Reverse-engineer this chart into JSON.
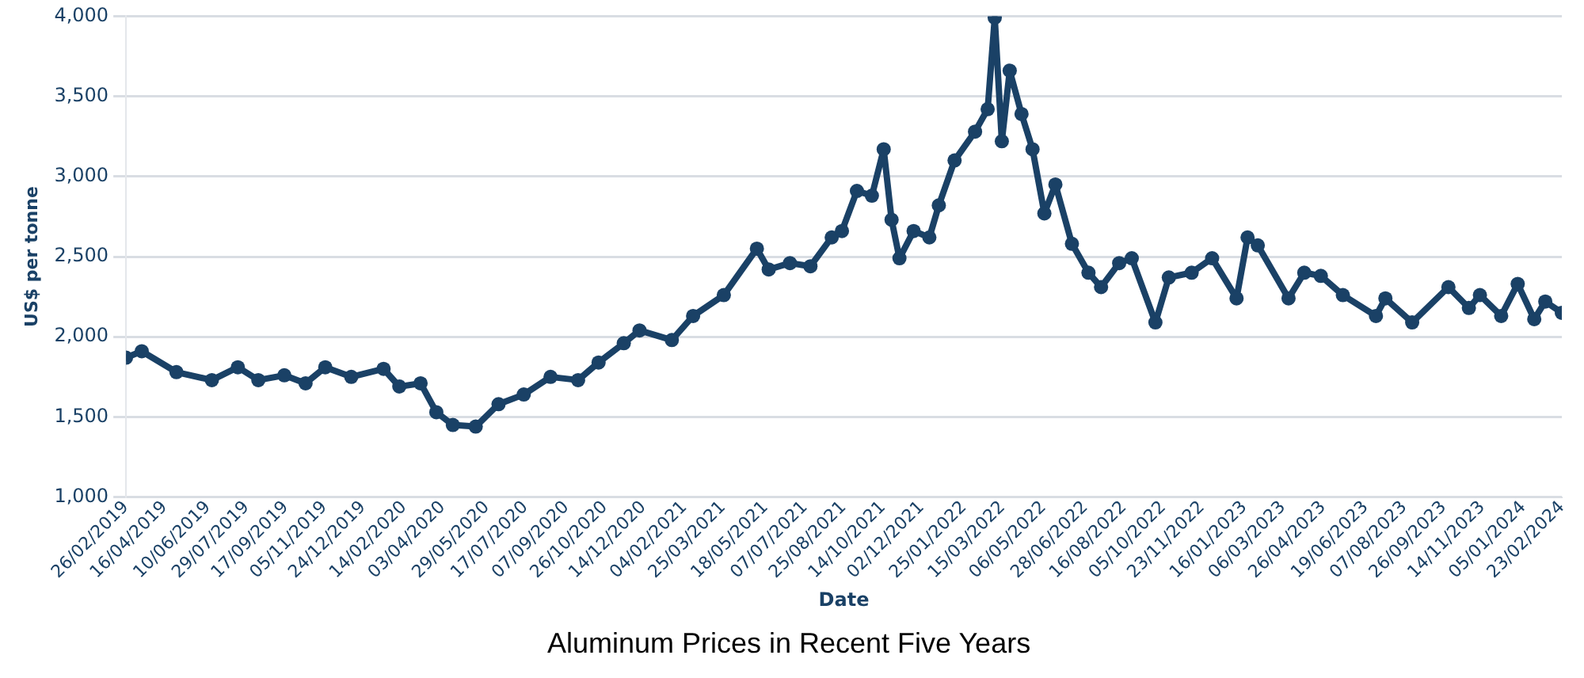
{
  "chart_data": {
    "type": "line",
    "title": "Aluminum Prices in Recent Five Years",
    "xlabel": "Date",
    "ylabel": "US$ per tonne",
    "x": [
      "2019-02-26",
      "2019-03-18",
      "2019-05-01",
      "2019-06-15",
      "2019-07-18",
      "2019-08-13",
      "2019-09-15",
      "2019-10-12",
      "2019-11-06",
      "2019-12-09",
      "2020-01-19",
      "2020-02-08",
      "2020-03-06",
      "2020-03-26",
      "2020-04-16",
      "2020-05-15",
      "2020-06-13",
      "2020-07-15",
      "2020-08-18",
      "2020-09-22",
      "2020-10-18",
      "2020-11-19",
      "2020-12-09",
      "2021-01-19",
      "2021-02-15",
      "2021-03-26",
      "2021-05-07",
      "2021-05-22",
      "2021-06-18",
      "2021-07-14",
      "2021-08-10",
      "2021-08-23",
      "2021-09-11",
      "2021-09-30",
      "2021-10-15",
      "2021-10-25",
      "2021-11-04",
      "2021-11-22",
      "2021-12-12",
      "2021-12-24",
      "2022-01-13",
      "2022-02-08",
      "2022-02-24",
      "2022-03-05",
      "2022-03-14",
      "2022-03-24",
      "2022-04-08",
      "2022-04-22",
      "2022-05-07",
      "2022-05-21",
      "2022-06-11",
      "2022-07-02",
      "2022-07-18",
      "2022-08-10",
      "2022-08-26",
      "2022-09-25",
      "2022-10-12",
      "2022-11-10",
      "2022-12-06",
      "2023-01-06",
      "2023-01-20",
      "2023-02-02",
      "2023-03-13",
      "2023-04-02",
      "2023-04-23",
      "2023-05-21",
      "2023-07-02",
      "2023-07-14",
      "2023-08-17",
      "2023-10-02",
      "2023-10-28",
      "2023-11-11",
      "2023-12-08",
      "2023-12-29",
      "2024-01-19",
      "2024-02-02",
      "2024-02-23"
    ],
    "series": [
      {
        "color": "#1a4166",
        "values": [
          1870,
          1910,
          1780,
          1730,
          1810,
          1730,
          1760,
          1710,
          1810,
          1750,
          1800,
          1690,
          1710,
          1530,
          1450,
          1440,
          1580,
          1640,
          1750,
          1730,
          1840,
          1960,
          2040,
          1980,
          2130,
          2260,
          2550,
          2420,
          2460,
          2440,
          2620,
          2660,
          2910,
          2880,
          3170,
          2730,
          2490,
          2660,
          2620,
          2820,
          3100,
          3280,
          3420,
          3990,
          3220,
          3660,
          3390,
          3170,
          2770,
          2950,
          2580,
          2400,
          2310,
          2460,
          2490,
          2090,
          2370,
          2400,
          2490,
          2240,
          2620,
          2570,
          2240,
          2400,
          2380,
          2260,
          2130,
          2240,
          2090,
          2310,
          2180,
          2260,
          2130,
          2330,
          2110,
          2220,
          2150
        ]
      }
    ],
    "xlim": [
      "2019-02-26",
      "2024-02-23"
    ],
    "xticks": [
      {
        "value": "2019-02-26",
        "label": "26/02/2019"
      },
      {
        "value": "2019-04-16",
        "label": "16/04/2019"
      },
      {
        "value": "2019-06-10",
        "label": "10/06/2019"
      },
      {
        "value": "2019-07-29",
        "label": "29/07/2019"
      },
      {
        "value": "2019-09-17",
        "label": "17/09/2019"
      },
      {
        "value": "2019-11-05",
        "label": "05/11/2019"
      },
      {
        "value": "2019-12-24",
        "label": "24/12/2019"
      },
      {
        "value": "2020-02-14",
        "label": "14/02/2020"
      },
      {
        "value": "2020-04-03",
        "label": "03/04/2020"
      },
      {
        "value": "2020-05-29",
        "label": "29/05/2020"
      },
      {
        "value": "2020-07-17",
        "label": "17/07/2020"
      },
      {
        "value": "2020-09-07",
        "label": "07/09/2020"
      },
      {
        "value": "2020-10-26",
        "label": "26/10/2020"
      },
      {
        "value": "2020-12-14",
        "label": "14/12/2020"
      },
      {
        "value": "2021-02-04",
        "label": "04/02/2021"
      },
      {
        "value": "2021-03-25",
        "label": "25/03/2021"
      },
      {
        "value": "2021-05-18",
        "label": "18/05/2021"
      },
      {
        "value": "2021-07-07",
        "label": "07/07/2021"
      },
      {
        "value": "2021-08-25",
        "label": "25/08/2021"
      },
      {
        "value": "2021-10-14",
        "label": "14/10/2021"
      },
      {
        "value": "2021-12-02",
        "label": "02/12/2021"
      },
      {
        "value": "2022-01-25",
        "label": "25/01/2022"
      },
      {
        "value": "2022-03-15",
        "label": "15/03/2022"
      },
      {
        "value": "2022-05-06",
        "label": "06/05/2022"
      },
      {
        "value": "2022-06-28",
        "label": "28/06/2022"
      },
      {
        "value": "2022-08-16",
        "label": "16/08/2022"
      },
      {
        "value": "2022-10-05",
        "label": "05/10/2022"
      },
      {
        "value": "2022-11-23",
        "label": "23/11/2022"
      },
      {
        "value": "2023-01-16",
        "label": "16/01/2023"
      },
      {
        "value": "2023-03-06",
        "label": "06/03/2023"
      },
      {
        "value": "2023-04-26",
        "label": "26/04/2023"
      },
      {
        "value": "2023-06-19",
        "label": "19/06/2023"
      },
      {
        "value": "2023-08-07",
        "label": "07/08/2023"
      },
      {
        "value": "2023-09-26",
        "label": "26/09/2023"
      },
      {
        "value": "2023-11-14",
        "label": "14/11/2023"
      },
      {
        "value": "2024-01-05",
        "label": "05/01/2024"
      },
      {
        "value": "2024-02-23",
        "label": "23/02/2024"
      }
    ],
    "ylim": [
      1000,
      4000
    ],
    "yticks": [
      {
        "value": 1000,
        "label": "1,000"
      },
      {
        "value": 1500,
        "label": "1,500"
      },
      {
        "value": 2000,
        "label": "2,000"
      },
      {
        "value": 2500,
        "label": "2,500"
      },
      {
        "value": 3000,
        "label": "3,000"
      },
      {
        "value": 3500,
        "label": "3,500"
      },
      {
        "value": 4000,
        "label": "4,000"
      }
    ],
    "grid": "y",
    "legend": false,
    "marker": "circle",
    "line_style": "solid"
  }
}
